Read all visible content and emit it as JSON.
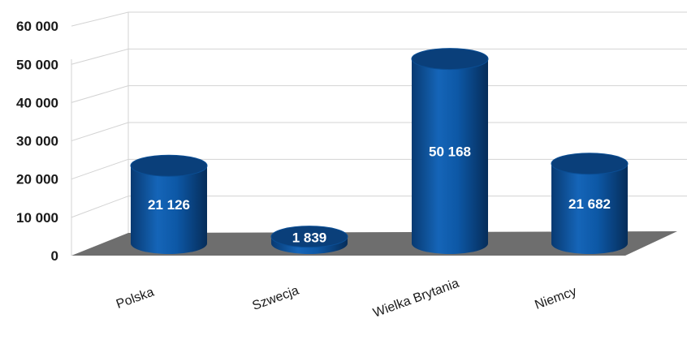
{
  "chart_data": {
    "type": "bar",
    "style": "3d-cylinder",
    "categories": [
      "Polska",
      "Szwecja",
      "Wielka Brytania",
      "Niemcy"
    ],
    "values": [
      21126,
      1839,
      50168,
      21682
    ],
    "value_labels": [
      "21 126",
      "1 839",
      "50 168",
      "21 682"
    ],
    "yticks": [
      "0",
      "10 000",
      "20 000",
      "30 000",
      "40 000",
      "50 000",
      "60 000"
    ],
    "ylim": [
      0,
      60000
    ],
    "grid": true,
    "legend": false,
    "colors": {
      "bar": "#0b4e94",
      "bar_dark": "#072f5e",
      "bar_top": "#0a3f7a",
      "floor": "#6e6e6e",
      "grid": "#d3d3d3"
    }
  }
}
